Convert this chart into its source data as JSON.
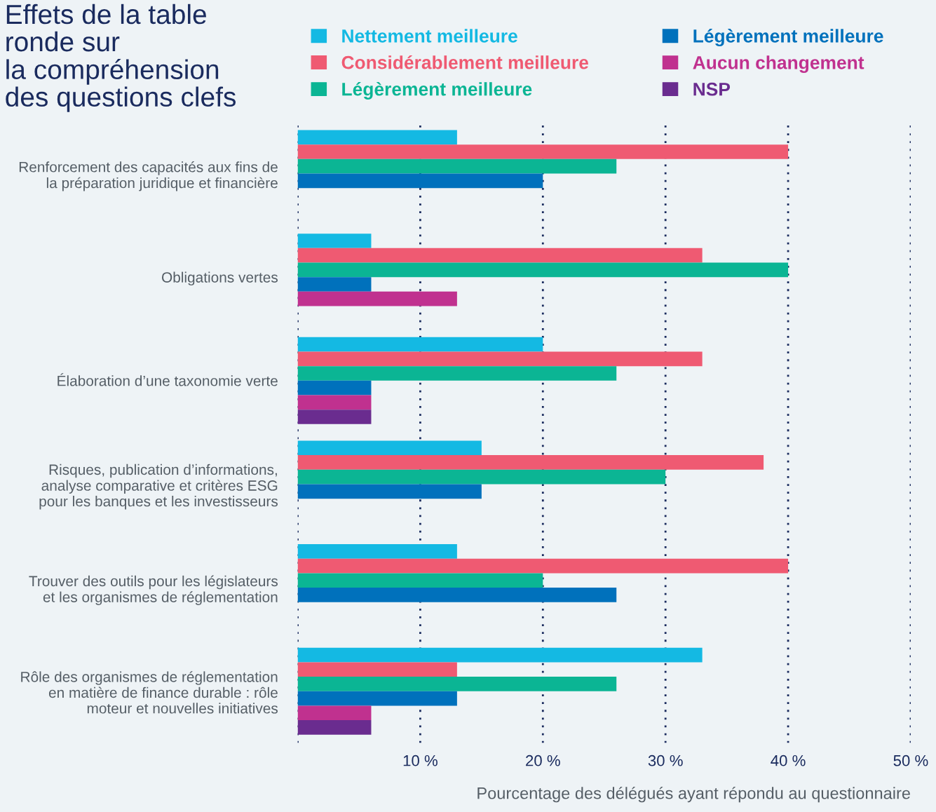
{
  "chart_data": {
    "type": "bar",
    "orientation": "horizontal",
    "title": "Effets de la table\nronde sur\nla compréhension\ndes questions clefs",
    "xlabel": "Pourcentage des délégués ayant répondu au questionnaire",
    "categories": [
      "Renforcement des capacités aux fins de\nla préparation juridique et financière",
      "Obligations vertes",
      "Élaboration d’une taxonomie verte",
      "Risques, publication d’informations,\nanalyse comparative et critères ESG\npour les banques et les investisseurs",
      "Trouver des outils pour les législateurs\net les organismes de réglementation",
      "Rôle des organismes de réglementation\nen matière de finance durable : rôle\nmoteur et nouvelles initiatives"
    ],
    "series": [
      {
        "name": "Nettement meilleure",
        "color": "#14b9e3",
        "values": [
          13,
          6,
          20,
          15,
          13,
          33
        ]
      },
      {
        "name": "Considérablement meilleure",
        "color": "#ef5a72",
        "values": [
          40,
          33,
          33,
          38,
          40,
          13
        ]
      },
      {
        "name": "Légèrement meilleure",
        "color": "#0bb594",
        "values": [
          26,
          40,
          26,
          30,
          20,
          26
        ]
      },
      {
        "name": "Légèrement meilleure",
        "color": "#0071bc",
        "values": [
          20,
          6,
          6,
          15,
          26,
          13
        ]
      },
      {
        "name": "Aucun changement",
        "color": "#c0318f",
        "values": [
          null,
          13,
          6,
          null,
          null,
          6
        ]
      },
      {
        "name": "NSP",
        "color": "#6a2c8f",
        "values": [
          null,
          null,
          6,
          null,
          null,
          6
        ]
      }
    ],
    "xlim": [
      0,
      50
    ],
    "xticks": [
      {
        "value": 0,
        "label": null
      },
      {
        "value": 10,
        "label": "10 %"
      },
      {
        "value": 20,
        "label": "20 %"
      },
      {
        "value": 30,
        "label": "30 %"
      },
      {
        "value": 40,
        "label": "40 %"
      },
      {
        "value": 50,
        "label": "50 %"
      }
    ],
    "grid": "x",
    "legend": "top"
  }
}
